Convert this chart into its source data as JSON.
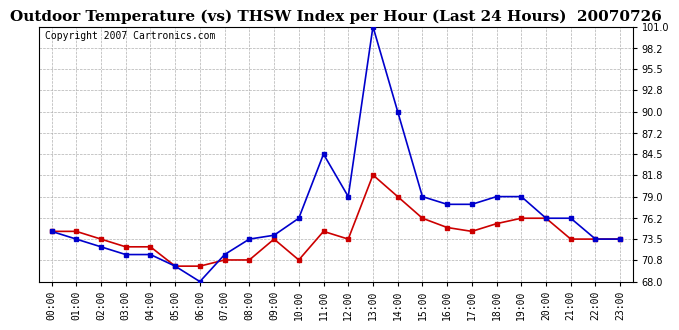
{
  "title": "Outdoor Temperature (vs) THSW Index per Hour (Last 24 Hours)  20070726",
  "copyright": "Copyright 2007 Cartronics.com",
  "hours": [
    "00:00",
    "01:00",
    "02:00",
    "03:00",
    "04:00",
    "05:00",
    "06:00",
    "07:00",
    "08:00",
    "09:00",
    "10:00",
    "11:00",
    "12:00",
    "13:00",
    "14:00",
    "15:00",
    "16:00",
    "17:00",
    "18:00",
    "19:00",
    "20:00",
    "21:00",
    "22:00",
    "23:00"
  ],
  "temp": [
    74.5,
    74.5,
    73.5,
    72.5,
    72.5,
    70.0,
    70.0,
    70.8,
    70.8,
    73.5,
    70.8,
    74.5,
    73.5,
    81.8,
    79.0,
    76.2,
    75.0,
    74.5,
    75.5,
    76.2,
    76.2,
    73.5,
    73.5,
    73.5
  ],
  "thsw": [
    74.5,
    73.5,
    72.5,
    71.5,
    71.5,
    70.0,
    68.0,
    71.5,
    73.5,
    74.0,
    76.2,
    84.5,
    79.0,
    101.0,
    90.0,
    79.0,
    78.0,
    78.0,
    79.0,
    79.0,
    76.2,
    76.2,
    73.5,
    73.5
  ],
  "temp_color": "#cc0000",
  "thsw_color": "#0000cc",
  "bg_color": "#ffffff",
  "grid_color": "#b0b0b0",
  "ylim": [
    68.0,
    101.0
  ],
  "yticks": [
    68.0,
    70.8,
    73.5,
    76.2,
    79.0,
    81.8,
    84.5,
    87.2,
    90.0,
    92.8,
    95.5,
    98.2,
    101.0
  ],
  "title_fontsize": 11,
  "copyright_fontsize": 7,
  "tick_fontsize": 7,
  "marker": "s",
  "marker_size": 3,
  "line_width": 1.2
}
